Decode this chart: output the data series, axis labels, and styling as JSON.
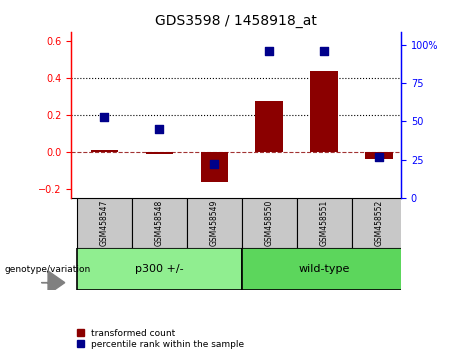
{
  "title": "GDS3598 / 1458918_at",
  "samples": [
    "GSM458547",
    "GSM458548",
    "GSM458549",
    "GSM458550",
    "GSM458551",
    "GSM458552"
  ],
  "red_values": [
    0.01,
    -0.01,
    -0.16,
    0.275,
    0.44,
    -0.04
  ],
  "blue_values_pct": [
    53,
    45,
    22,
    96,
    96,
    27
  ],
  "group_label": "genotype/variation",
  "left_ylim": [
    -0.25,
    0.65
  ],
  "left_yticks": [
    -0.2,
    0.0,
    0.2,
    0.4,
    0.6
  ],
  "right_ylim": [
    0,
    108.33
  ],
  "right_yticks": [
    0,
    25,
    50,
    75,
    100
  ],
  "right_yticklabels": [
    "0",
    "25",
    "50",
    "75",
    "100%"
  ],
  "hlines_dotted": [
    0.2,
    0.4
  ],
  "hline_dashed": 0.0,
  "red_color": "#8B0000",
  "blue_color": "#00008B",
  "bar_width": 0.5,
  "legend_items": [
    "transformed count",
    "percentile rank within the sample"
  ],
  "group_configs": [
    {
      "start": 0,
      "end": 2,
      "label": "p300 +/-",
      "color": "#90EE90"
    },
    {
      "start": 3,
      "end": 5,
      "label": "wild-type",
      "color": "#5CD65C"
    }
  ],
  "sample_box_color": "#C8C8C8",
  "xlim": [
    -0.6,
    5.4
  ]
}
